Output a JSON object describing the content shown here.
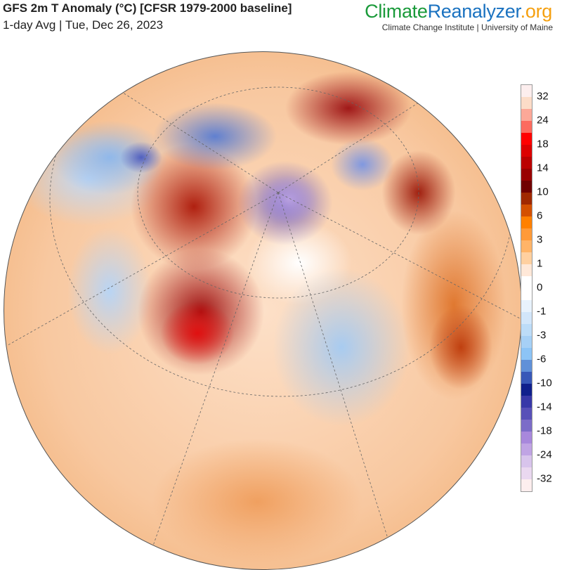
{
  "header": {
    "title": "GFS 2m T Anomaly (°C) [CFSR 1979-2000 baseline]",
    "subtitle": "1-day Avg | Tue, Dec 26, 2023"
  },
  "brand": {
    "part1": "Climate",
    "part2": "Reanalyzer",
    "part3": ".org",
    "institute": "Climate Change Institute | University of Maine"
  },
  "colorbar": {
    "labels": [
      "32",
      "24",
      "18",
      "14",
      "10",
      "6",
      "3",
      "1",
      "0",
      "-1",
      "-3",
      "-6",
      "-10",
      "-14",
      "-18",
      "-24",
      "-32"
    ],
    "colors": [
      "#fdeeee",
      "#fcdcc8",
      "#fca898",
      "#fc6b5f",
      "#ff0000",
      "#dd0000",
      "#bb0000",
      "#990000",
      "#700000",
      "#a02800",
      "#d45000",
      "#ff8000",
      "#ff9a38",
      "#ffb468",
      "#ffd0a0",
      "#ffe8d8",
      "#ffffff",
      "#ffffff",
      "#e8f2fc",
      "#d2e6fa",
      "#bcdcf8",
      "#a6d0f6",
      "#8cc4f6",
      "#6090d8",
      "#3858b8",
      "#10208c",
      "#3838a8",
      "#5850b8",
      "#7c6cc8",
      "#a888dc",
      "#c0a4e4",
      "#d8c4ec",
      "#ead8f0",
      "#fdeeee"
    ]
  }
}
